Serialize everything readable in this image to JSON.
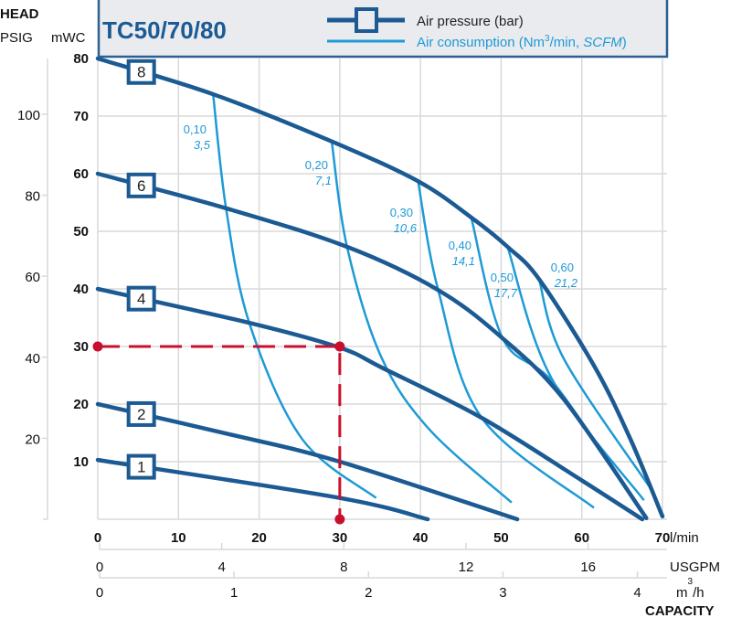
{
  "chart_data": {
    "type": "line",
    "title": "TC50/70/80",
    "legend": {
      "placement": "top",
      "entries": [
        "Air pressure (bar)",
        "Air consumption (Nm³/min, SCFM)"
      ],
      "pressure_text": "Air pressure (bar)",
      "consumption_prefix": "Air consumption (Nm",
      "consumption_sup": "3",
      "consumption_mid": "/min, ",
      "consumption_italic": "SCFM",
      "consumption_suffix": ")"
    },
    "ylabel": "HEAD",
    "y_units_left": "PSIG",
    "y_units_right": "mWC",
    "ylim": [
      0,
      80
    ],
    "yticks_mwc": [
      10,
      20,
      30,
      40,
      50,
      60,
      70,
      80
    ],
    "yticks_psig": [
      20,
      40,
      60,
      80,
      100
    ],
    "xlabel": "CAPACITY",
    "xlim": [
      0,
      70
    ],
    "xticks_lmin": [
      0,
      10,
      20,
      30,
      40,
      50,
      60,
      70
    ],
    "x_unit_lmin": "l/min",
    "xticks_usgpm": [
      0,
      4,
      8,
      12,
      16
    ],
    "x_unit_usgpm": "USGPM",
    "xticks_m3h": [
      0,
      1,
      2,
      3,
      4
    ],
    "x_unit_m3h": "m",
    "x_unit_m3h_sup": "3",
    "x_unit_m3h_suffix": "/h",
    "grid": true,
    "colors": {
      "pressure": "#1b5a93",
      "consumption": "#1e9ad6",
      "operating_point": "#c8102e",
      "legend_bg": "#e9ebee"
    },
    "pressure_series": [
      {
        "name": "8",
        "x": [
          0,
          14.3,
          29,
          39.7,
          46.3,
          50.8,
          54.7,
          61.5,
          66,
          70
        ],
        "y": [
          80,
          73.8,
          65.6,
          58.7,
          52.4,
          47.3,
          41.7,
          26.7,
          14,
          0.5
        ]
      },
      {
        "name": "6",
        "x": [
          0,
          15.9,
          30.9,
          42.2,
          50.2,
          57.8,
          68
        ],
        "y": [
          60,
          54,
          47.3,
          39.8,
          31.4,
          20.8,
          0.2
        ]
      },
      {
        "name": "4",
        "x": [
          0,
          18.8,
          30,
          35.4,
          47.6,
          59.6,
          67.5
        ],
        "y": [
          40,
          34.1,
          29.8,
          26.2,
          17.6,
          7.1,
          0
        ]
      },
      {
        "name": "2",
        "x": [
          0,
          16.2,
          30,
          52
        ],
        "y": [
          20,
          14.8,
          10,
          0
        ]
      },
      {
        "name": "1",
        "x": [
          0,
          30,
          40.9
        ],
        "y": [
          10.3,
          3.7,
          0
        ]
      }
    ],
    "consumption_series": [
      {
        "name": "0,10",
        "scfm": "3,5",
        "x": [
          14.3,
          15.9,
          18.8,
          25.3,
          34.5
        ],
        "y": [
          73.8,
          54,
          34,
          14,
          3.7
        ]
      },
      {
        "name": "0,20",
        "scfm": "7,1",
        "x": [
          29,
          30.9,
          35.1,
          41.1,
          51.3
        ],
        "y": [
          65.6,
          47.3,
          28.3,
          15.6,
          2.9
        ]
      },
      {
        "name": "0,30",
        "scfm": "10,6",
        "x": [
          39.7,
          42.2,
          47.6,
          61.5
        ],
        "y": [
          58.7,
          39.8,
          17.6,
          2
        ]
      },
      {
        "name": "0,40",
        "scfm": "14,1",
        "x": [
          46.3,
          50.2,
          56.6,
          66.8
        ],
        "y": [
          52.4,
          31.4,
          23.5,
          2.5
        ]
      },
      {
        "name": "0,50",
        "scfm": "17,7",
        "x": [
          50.8,
          56.2,
          67.7
        ],
        "y": [
          47.3,
          24.6,
          3.3
        ]
      },
      {
        "name": "0,60",
        "scfm": "21,2",
        "x": [
          54.7,
          57.8,
          69
        ],
        "y": [
          41.7,
          27.8,
          4.4
        ]
      }
    ],
    "operating_point": {
      "x": 30,
      "y": 30
    }
  }
}
